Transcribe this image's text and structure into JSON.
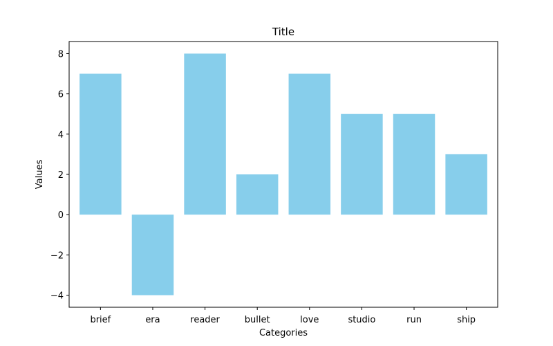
{
  "chart_data": {
    "type": "bar",
    "title": "Title",
    "xlabel": "Categories",
    "ylabel": "Values",
    "categories": [
      "brief",
      "era",
      "reader",
      "bullet",
      "love",
      "studio",
      "run",
      "ship"
    ],
    "values": [
      7,
      -4,
      8,
      2,
      7,
      5,
      5,
      3
    ],
    "ylim": [
      -4.6,
      8.6
    ],
    "yticks": [
      -4,
      -2,
      0,
      2,
      4,
      6,
      8
    ],
    "ytick_labels": [
      "−4",
      "−2",
      "0",
      "2",
      "4",
      "6",
      "8"
    ],
    "bar_color": "#87ceeb",
    "grid": false,
    "legend": "none"
  }
}
